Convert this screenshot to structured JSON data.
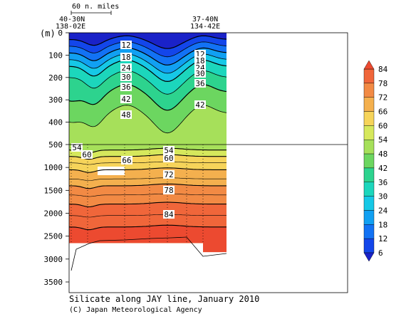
{
  "chart_data": {
    "type": "heatmap",
    "title": "Silicate along JAY line, January 2010",
    "credit": "(C) Japan Meteorological Agency",
    "ylabel": "(m)",
    "y_ticks": [
      0,
      100,
      200,
      300,
      400,
      500,
      1000,
      1500,
      2000,
      2500,
      3000,
      3500
    ],
    "scale_bar_label": "60 n. miles",
    "start_station": {
      "lat": "40-30N",
      "lon": "138-02E"
    },
    "end_station": {
      "lat": "37-40N",
      "lon": "134-42E"
    },
    "colorbar_levels": [
      6,
      12,
      18,
      24,
      30,
      36,
      42,
      48,
      54,
      60,
      66,
      72,
      78,
      84
    ],
    "colors": [
      "#1a22c8",
      "#1346ea",
      "#1272f4",
      "#11a0f2",
      "#16c8e6",
      "#1cd6bc",
      "#2dd38e",
      "#6cd660",
      "#a6e05a",
      "#d6e85c",
      "#f6d45a",
      "#f4b04e",
      "#f28a44",
      "#f0663a",
      "#ec4a30"
    ],
    "contour_labels_upper": [
      12,
      18,
      24,
      30,
      36,
      42,
      48
    ],
    "contour_labels_upper_right": [
      12,
      18,
      24,
      30,
      36,
      42
    ],
    "contour_labels_lower": [
      54,
      60,
      66,
      72,
      78,
      84
    ]
  }
}
